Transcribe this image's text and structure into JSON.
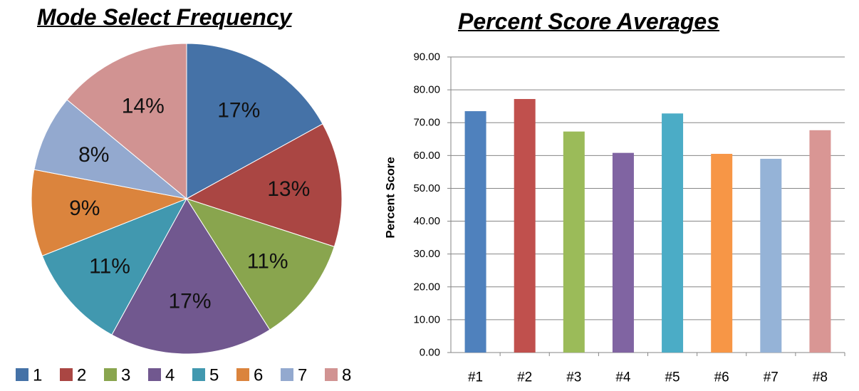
{
  "chart_data": [
    {
      "type": "pie",
      "title": "Mode Select Frequency",
      "categories": [
        "1",
        "2",
        "3",
        "4",
        "5",
        "6",
        "7",
        "8"
      ],
      "values": [
        17,
        13,
        11,
        17,
        11,
        9,
        8,
        14
      ],
      "labels": [
        "17%",
        "13%",
        "11%",
        "17%",
        "11%",
        "9%",
        "8%",
        "14%"
      ],
      "colors": [
        "#4572A7",
        "#AA4643",
        "#89A54E",
        "#71588F",
        "#4198AF",
        "#DB843D",
        "#93A9CF",
        "#D19392"
      ],
      "legend_position": "bottom"
    },
    {
      "type": "bar",
      "title": "Percent Score Averages",
      "xlabel": "",
      "ylabel": "Percent Score",
      "categories": [
        "#1",
        "#2",
        "#3",
        "#4",
        "#5",
        "#6",
        "#7",
        "#8"
      ],
      "values": [
        73.5,
        77.2,
        67.3,
        60.8,
        72.8,
        60.5,
        59.0,
        67.7
      ],
      "colors": [
        "#4F81BD",
        "#C0504D",
        "#9BBB59",
        "#8064A2",
        "#4BACC6",
        "#F79646",
        "#95B3D7",
        "#D99694"
      ],
      "ylim": [
        0,
        90
      ],
      "yticks": [
        "0.00",
        "10.00",
        "20.00",
        "30.00",
        "40.00",
        "50.00",
        "60.00",
        "70.00",
        "80.00",
        "90.00"
      ],
      "grid": true,
      "legend": false
    }
  ]
}
